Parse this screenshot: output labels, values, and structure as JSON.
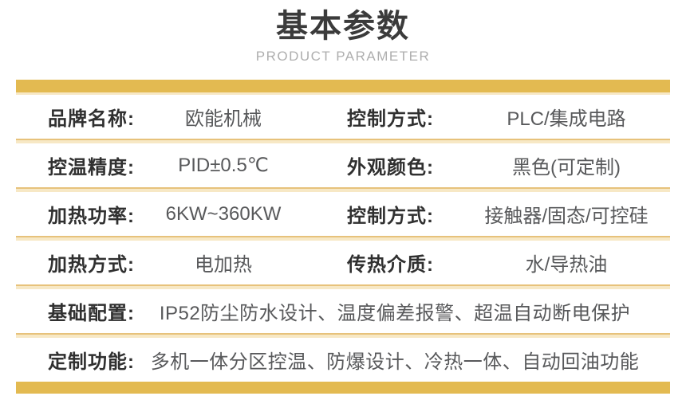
{
  "header": {
    "title": "基本参数",
    "subtitle": "PRODUCT PARAMETER"
  },
  "table": {
    "rows": [
      {
        "l1": "品牌名称:",
        "v1": "欧能机械",
        "l2": "控制方式:",
        "v2": "PLC/集成电路"
      },
      {
        "l1": "控温精度:",
        "v1": "PID±0.5℃",
        "l2": "外观颜色:",
        "v2": "黑色(可定制)"
      },
      {
        "l1": "加热功率:",
        "v1": "6KW~360KW",
        "l2": "控制方式:",
        "v2": "接触器/固态/可控硅"
      },
      {
        "l1": "加热方式:",
        "v1": "电加热",
        "l2": "传热介质:",
        "v2": "水/导热油"
      },
      {
        "label": "基础配置:",
        "value": "IP52防尘防水设计、温度偏差报警、超温自动断电保护"
      },
      {
        "label": "定制功能:",
        "value": "多机一体分区控温、防爆设计、冷热一体、自动回油功能"
      }
    ]
  },
  "colors": {
    "accent_gold": "#e3ba51",
    "accent_cream": "#f7e8c5",
    "divider_gold": "#e7c27b",
    "title_text": "#3b3b3b",
    "subtitle_text": "#aeaeae",
    "label_text": "#303030",
    "value_text": "#58595b"
  }
}
